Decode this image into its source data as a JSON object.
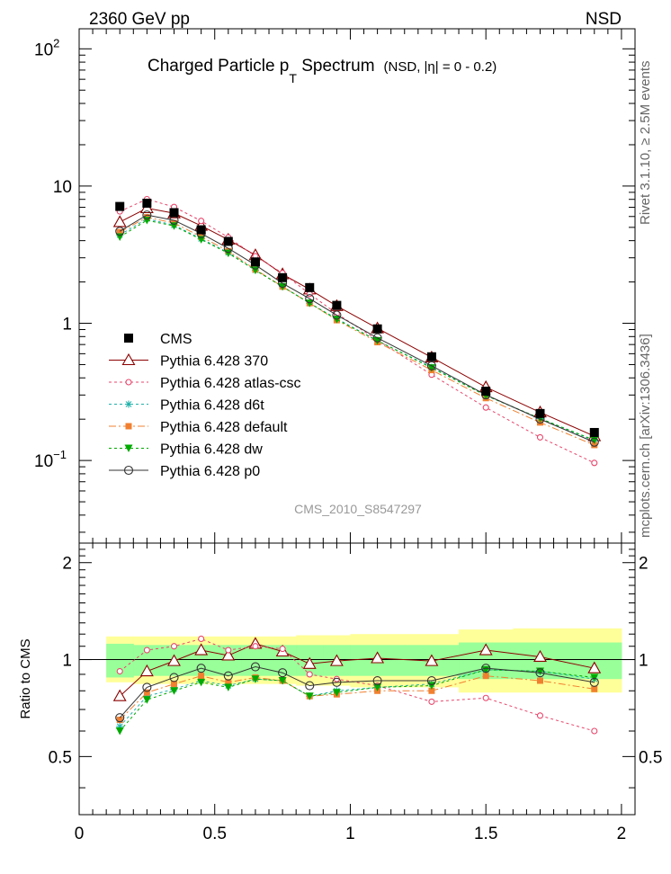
{
  "header": {
    "top_left": "2360 GeV pp",
    "top_right": "NSD",
    "side_rivet": "Rivet 3.1.10, ≥ 2.5M events",
    "side_mcplots": "mcplots.cern.ch [arXiv:1306.3436]"
  },
  "chart_data": {
    "type": "scatter",
    "title_parts": [
      "Charged Particle p",
      "T",
      " Spectrum",
      "(NSD, |η| =   0 - 0.2)"
    ],
    "watermark": "CMS_2010_S8547297",
    "xlim": [
      0,
      2.05
    ],
    "x_ticks": [
      "0",
      "0.5",
      "1",
      "1.5",
      "2"
    ],
    "main": {
      "yscale": "log",
      "ylim": [
        0.025,
        140
      ],
      "y_ticks": [
        {
          "v": 100,
          "base": "10",
          "sup": "2"
        },
        {
          "v": 10,
          "base": "10",
          "sup": ""
        },
        {
          "v": 1,
          "base": "1",
          "sup": ""
        },
        {
          "v": 0.1,
          "base": "10",
          "sup": "−1"
        }
      ]
    },
    "ratio": {
      "ylabel": "Ratio to CMS",
      "ylim": [
        0.33,
        2.3
      ],
      "y_ticks": [
        "0.5",
        "1",
        "2"
      ],
      "y_tick_values": [
        0.5,
        1,
        2
      ],
      "band_edges": [
        0.1,
        0.2,
        0.3,
        0.4,
        0.5,
        0.6,
        0.7,
        0.8,
        0.9,
        1.0,
        1.2,
        1.4,
        1.6,
        1.8,
        2.0
      ],
      "band_inner": [
        [
          0.88,
          1.12
        ],
        [
          0.89,
          1.11
        ],
        [
          0.89,
          1.11
        ],
        [
          0.89,
          1.11
        ],
        [
          0.89,
          1.11
        ],
        [
          0.89,
          1.11
        ],
        [
          0.89,
          1.11
        ],
        [
          0.89,
          1.11
        ],
        [
          0.89,
          1.11
        ],
        [
          0.89,
          1.11
        ],
        [
          0.89,
          1.11
        ],
        [
          0.87,
          1.13
        ],
        [
          0.87,
          1.13
        ],
        [
          0.87,
          1.13
        ]
      ],
      "band_outer": [
        [
          0.85,
          1.18
        ],
        [
          0.84,
          1.18
        ],
        [
          0.84,
          1.18
        ],
        [
          0.84,
          1.18
        ],
        [
          0.84,
          1.18
        ],
        [
          0.84,
          1.18
        ],
        [
          0.84,
          1.18
        ],
        [
          0.83,
          1.19
        ],
        [
          0.83,
          1.19
        ],
        [
          0.82,
          1.2
        ],
        [
          0.82,
          1.2
        ],
        [
          0.79,
          1.24
        ],
        [
          0.79,
          1.25
        ],
        [
          0.79,
          1.25
        ]
      ]
    },
    "x": [
      0.15,
      0.25,
      0.35,
      0.45,
      0.55,
      0.65,
      0.75,
      0.85,
      0.95,
      1.1,
      1.3,
      1.5,
      1.7,
      1.9
    ],
    "cms": [
      7.1,
      7.5,
      6.4,
      4.8,
      3.95,
      2.8,
      2.15,
      1.82,
      1.35,
      0.91,
      0.57,
      0.32,
      0.22,
      0.16
    ],
    "legend": [
      "CMS",
      "Pythia 6.428 370",
      "Pythia 6.428 atlas-csc",
      "Pythia 6.428 d6t",
      "Pythia 6.428 default",
      "Pythia 6.428 dw",
      "Pythia 6.428 p0"
    ],
    "series": [
      {
        "name": "Pythia 6.428 370",
        "color": "#8b0000",
        "marker": "triangle-open",
        "dash": "",
        "ratio": [
          0.77,
          0.92,
          0.99,
          1.07,
          1.03,
          1.12,
          1.06,
          0.97,
          0.99,
          1.01,
          0.99,
          1.07,
          1.02,
          0.94
        ]
      },
      {
        "name": "Pythia 6.428 atlas-csc",
        "color": "#e8456b",
        "marker": "circle-open-small",
        "dash": "3,3",
        "ratio": [
          0.92,
          1.07,
          1.1,
          1.16,
          1.07,
          1.1,
          1.08,
          0.9,
          0.87,
          0.83,
          0.74,
          0.76,
          0.67,
          0.6
        ]
      },
      {
        "name": "Pythia 6.428 d6t",
        "color": "#20b2aa",
        "marker": "star",
        "dash": "3,3",
        "ratio": [
          0.62,
          0.77,
          0.81,
          0.86,
          0.83,
          0.87,
          0.86,
          0.77,
          0.8,
          0.82,
          0.84,
          0.93,
          0.92,
          0.87
        ]
      },
      {
        "name": "Pythia 6.428 default",
        "color": "#f08030",
        "marker": "square-filled",
        "dash": "8,3,2,3",
        "ratio": [
          0.65,
          0.79,
          0.84,
          0.89,
          0.85,
          0.88,
          0.86,
          0.77,
          0.78,
          0.8,
          0.8,
          0.89,
          0.86,
          0.81
        ]
      },
      {
        "name": "Pythia 6.428 dw",
        "color": "#00aa00",
        "marker": "triangle-down-filled",
        "dash": "3,3",
        "ratio": [
          0.6,
          0.75,
          0.8,
          0.85,
          0.82,
          0.87,
          0.86,
          0.77,
          0.79,
          0.82,
          0.83,
          0.93,
          0.92,
          0.88
        ]
      },
      {
        "name": "Pythia 6.428 p0",
        "color": "#333333",
        "marker": "circle-open",
        "dash": "",
        "ratio": [
          0.66,
          0.82,
          0.88,
          0.94,
          0.89,
          0.95,
          0.91,
          0.83,
          0.85,
          0.86,
          0.86,
          0.94,
          0.91,
          0.85
        ]
      }
    ]
  }
}
